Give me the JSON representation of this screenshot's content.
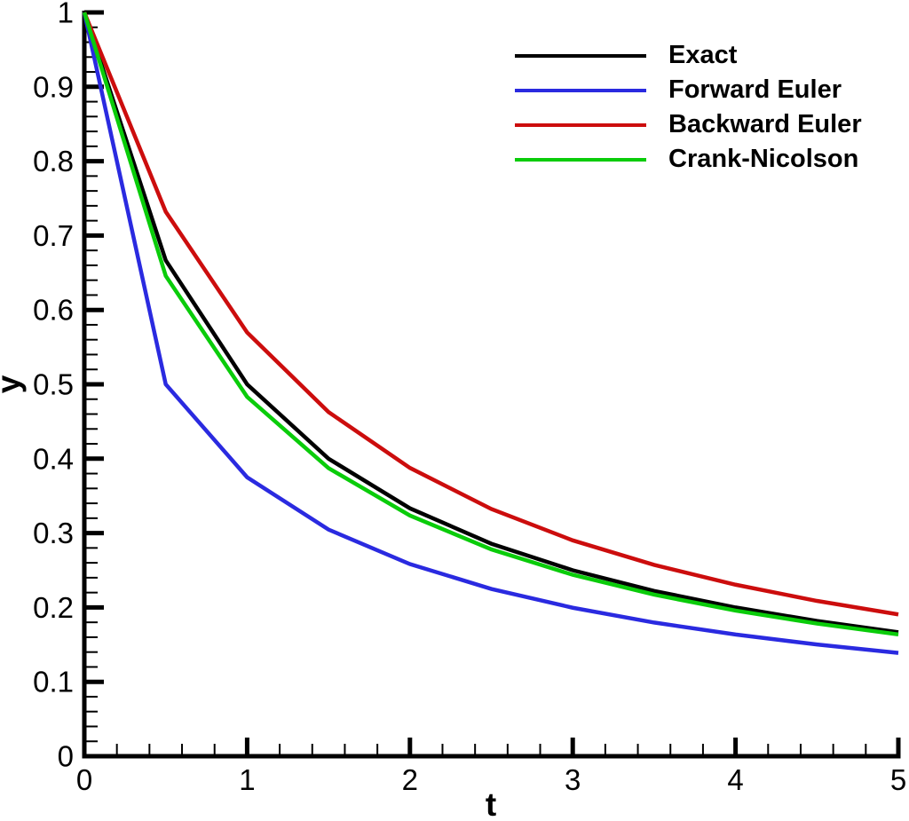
{
  "figure": {
    "background": "#ffffff"
  },
  "chart_data": {
    "type": "line",
    "title": "",
    "xlabel": "t",
    "ylabel": "y",
    "xlim": [
      0,
      5
    ],
    "ylim": [
      0,
      1
    ],
    "grid": false,
    "x_major_ticks": {
      "values": [
        0,
        1,
        2,
        3,
        4,
        5
      ],
      "labels": [
        "0",
        "1",
        "2",
        "3",
        "4",
        "5"
      ]
    },
    "y_major_ticks": {
      "values": [
        0,
        0.1,
        0.2,
        0.3,
        0.4,
        0.5,
        0.6,
        0.7,
        0.8,
        0.9,
        1
      ],
      "labels": [
        "0",
        "0.1",
        "0.2",
        "0.3",
        "0.4",
        "0.5",
        "0.6",
        "0.7",
        "0.8",
        "0.9",
        "1"
      ]
    },
    "x_minor_step": 0.2,
    "y_minor_step": 0.02,
    "x": [
      0,
      0.5,
      1,
      1.5,
      2,
      2.5,
      3,
      3.5,
      4,
      4.5,
      5
    ],
    "series": [
      {
        "name": "Exact",
        "color": "#000000",
        "values": [
          1,
          0.6667,
          0.5,
          0.4,
          0.3333,
          0.2857,
          0.25,
          0.2222,
          0.2,
          0.1818,
          0.1667
        ]
      },
      {
        "name": "Forward Euler",
        "color": "#2A2AE0",
        "values": [
          1,
          0.5,
          0.375,
          0.3047,
          0.2583,
          0.2249,
          0.1996,
          0.1797,
          0.1636,
          0.1502,
          0.1389
        ]
      },
      {
        "name": "Backward Euler",
        "color": "#CC0D0D",
        "values": [
          1,
          0.7321,
          0.5697,
          0.4627,
          0.3876,
          0.3324,
          0.2902,
          0.2572,
          0.2306,
          0.2088,
          0.1906
        ]
      },
      {
        "name": "Crank-Nicolson",
        "color": "#0ACC0A",
        "values": [
          1,
          0.6458,
          0.4831,
          0.3873,
          0.3236,
          0.2781,
          0.2439,
          0.2172,
          0.1958,
          0.1783,
          0.1637
        ]
      }
    ],
    "legend": {
      "position": "top-right",
      "entries": [
        "Exact",
        "Forward Euler",
        "Backward Euler",
        "Crank-Nicolson"
      ]
    }
  }
}
